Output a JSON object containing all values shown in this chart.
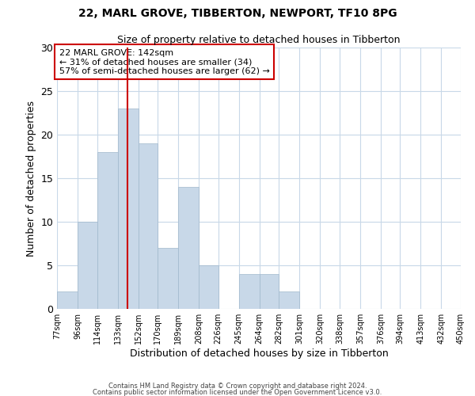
{
  "title": "22, MARL GROVE, TIBBERTON, NEWPORT, TF10 8PG",
  "subtitle": "Size of property relative to detached houses in Tibberton",
  "xlabel": "Distribution of detached houses by size in Tibberton",
  "ylabel": "Number of detached properties",
  "bar_color": "#c8d8e8",
  "bar_edgecolor": "#a0b8cc",
  "bar_linewidth": 0.5,
  "bin_edges": [
    77,
    96,
    114,
    133,
    152,
    170,
    189,
    208,
    226,
    245,
    264,
    282,
    301,
    320,
    338,
    357,
    376,
    394,
    413,
    432,
    450
  ],
  "bin_labels": [
    "77sqm",
    "96sqm",
    "114sqm",
    "133sqm",
    "152sqm",
    "170sqm",
    "189sqm",
    "208sqm",
    "226sqm",
    "245sqm",
    "264sqm",
    "282sqm",
    "301sqm",
    "320sqm",
    "338sqm",
    "357sqm",
    "376sqm",
    "394sqm",
    "413sqm",
    "432sqm",
    "450sqm"
  ],
  "counts": [
    2,
    10,
    18,
    23,
    19,
    7,
    14,
    5,
    0,
    4,
    4,
    2,
    0,
    0,
    0,
    0,
    0,
    0,
    0,
    0
  ],
  "ylim": [
    0,
    30
  ],
  "yticks": [
    0,
    5,
    10,
    15,
    20,
    25,
    30
  ],
  "property_line_x": 142,
  "property_line_color": "#cc0000",
  "annotation_title": "22 MARL GROVE: 142sqm",
  "annotation_line1": "← 31% of detached houses are smaller (34)",
  "annotation_line2": "57% of semi-detached houses are larger (62) →",
  "annotation_box_edgecolor": "#cc0000",
  "annotation_box_facecolor": "#ffffff",
  "footer1": "Contains HM Land Registry data © Crown copyright and database right 2024.",
  "footer2": "Contains public sector information licensed under the Open Government Licence v3.0.",
  "background_color": "#ffffff",
  "grid_color": "#c8d8e8"
}
